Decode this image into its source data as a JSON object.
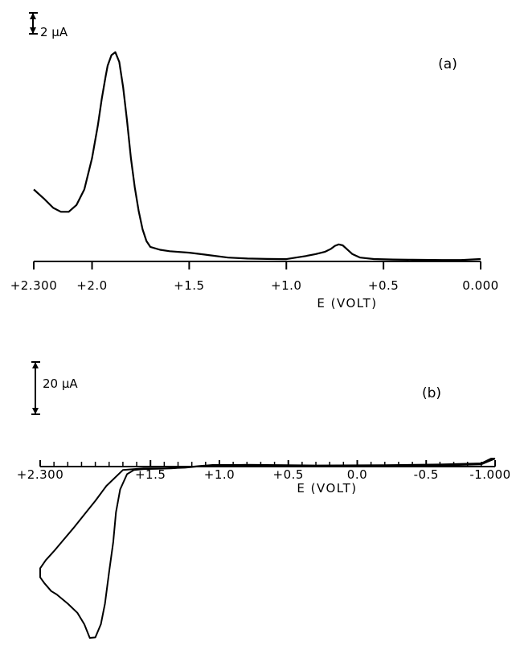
{
  "chart_data": [
    {
      "panel_label": "(a)",
      "type": "line",
      "xlabel": "E (VOLT)",
      "xlim": [
        2.3,
        0.0
      ],
      "tick_labels": [
        "+2.300",
        "+2.0",
        "+1.5",
        "+1.0",
        "+0.5",
        "0.000"
      ],
      "tick_values": [
        2.3,
        2.0,
        1.5,
        1.0,
        0.5,
        0.0
      ],
      "scale_bar": "2 μA",
      "series": [
        {
          "x": [
            2.3,
            2.25,
            2.2,
            2.16,
            2.12,
            2.08,
            2.04,
            2.0,
            1.97,
            1.95,
            1.93,
            1.92,
            1.9,
            1.88,
            1.86,
            1.84,
            1.82,
            1.8,
            1.78,
            1.76,
            1.74,
            1.72,
            1.7,
            1.65,
            1.6,
            1.5,
            1.4,
            1.3,
            1.2,
            1.1,
            1.0,
            0.95,
            0.9,
            0.85,
            0.8,
            0.77,
            0.75,
            0.73,
            0.71,
            0.69,
            0.66,
            0.62,
            0.55,
            0.45,
            0.35,
            0.2,
            0.1,
            0.0
          ],
          "y": [
            7.4,
            6.5,
            5.5,
            5.1,
            5.1,
            5.8,
            7.4,
            10.6,
            14.0,
            16.7,
            19.0,
            20.1,
            21.2,
            21.5,
            20.5,
            17.9,
            14.5,
            10.6,
            7.6,
            5.2,
            3.3,
            2.1,
            1.5,
            1.2,
            1.05,
            0.9,
            0.65,
            0.4,
            0.3,
            0.26,
            0.24,
            0.4,
            0.55,
            0.75,
            1.0,
            1.3,
            1.6,
            1.75,
            1.65,
            1.3,
            0.75,
            0.4,
            0.25,
            0.2,
            0.17,
            0.15,
            0.15,
            0.25
          ],
          "y_unit": "μA (relative)"
        }
      ]
    },
    {
      "panel_label": "(b)",
      "type": "line",
      "xlabel": "E (VOLT)",
      "xlim": [
        2.3,
        -1.0
      ],
      "tick_labels": [
        "+2.300",
        "+1.5",
        "+1.0",
        "+0.5",
        "0.0",
        "-0.5",
        "-1.000"
      ],
      "tick_values": [
        2.3,
        1.5,
        1.0,
        0.5,
        0.0,
        -0.5,
        -1.0
      ],
      "scale_bar": "20 μA",
      "series": [
        {
          "x": [
            -1.0,
            -0.9,
            -0.6,
            -0.2,
            0.2,
            0.6,
            0.9,
            1.05,
            1.15,
            1.25,
            1.35,
            1.45,
            1.55,
            1.62,
            1.67,
            1.72,
            1.75,
            1.77,
            1.8,
            1.83,
            1.86,
            1.9,
            1.94,
            1.98,
            2.03,
            2.1,
            2.18,
            2.22,
            2.27,
            2.3,
            2.3,
            2.26,
            2.2,
            2.13,
            2.06,
            1.98,
            1.9,
            1.82,
            1.7,
            1.55,
            1.4,
            1.25,
            1.1,
            0.8,
            0.3,
            -0.2,
            -0.6,
            -0.9,
            -0.97,
            -1.0
          ],
          "y": [
            3.5,
            1.0,
            0.5,
            0.3,
            0.4,
            0.5,
            0.7,
            0.7,
            0.2,
            -0.4,
            -0.8,
            -1.0,
            -1.1,
            -1.5,
            -3.3,
            -10.0,
            -20.0,
            -33.0,
            -46.0,
            -60.0,
            -69.0,
            -74.8,
            -75.0,
            -69.0,
            -64.0,
            -60.0,
            -56.0,
            -54.5,
            -51.0,
            -48.5,
            -44.5,
            -41.0,
            -37.0,
            -32.0,
            -27.0,
            -21.0,
            -15.0,
            -8.5,
            -1.5,
            -0.8,
            -0.8,
            -0.5,
            0.4,
            0.8,
            0.5,
            0.6,
            0.9,
            1.4,
            3.5,
            3.5
          ],
          "y_unit": "μA (relative)"
        }
      ]
    }
  ]
}
